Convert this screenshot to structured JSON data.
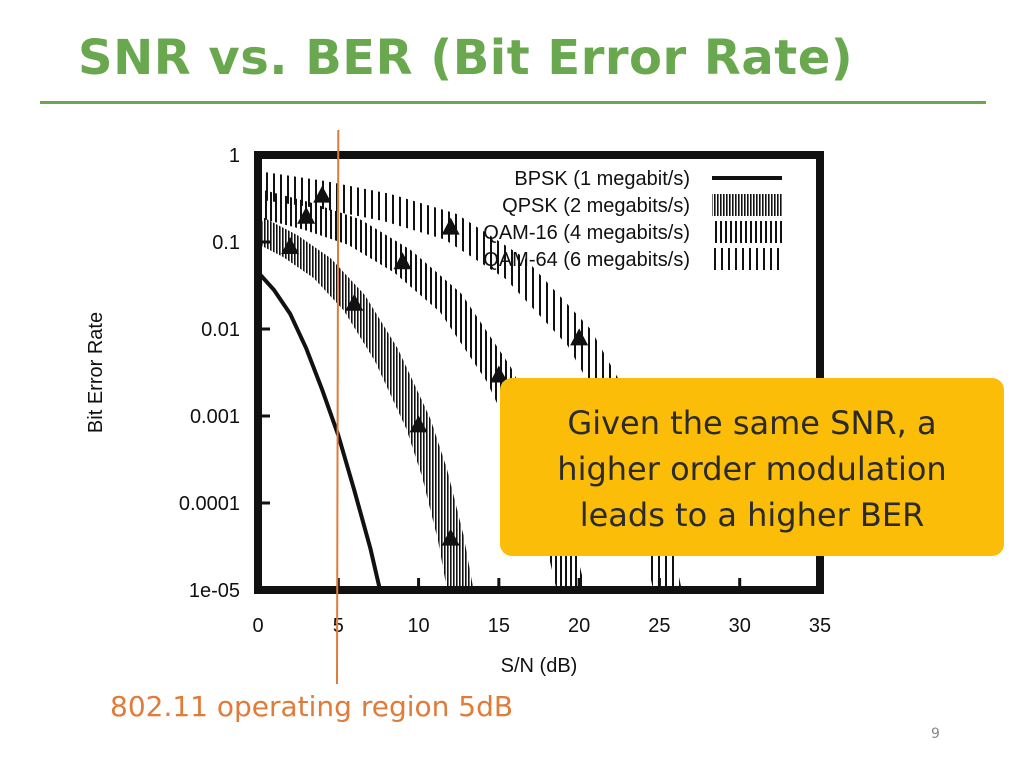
{
  "slide": {
    "title": "SNR vs. BER (Bit Error Rate)",
    "callout_lines": [
      "Given the same SNR, a",
      "higher order modulation",
      "leads to a higher BER"
    ],
    "annotation": "802.11 operating region 5dB",
    "page_number": "9"
  },
  "colors": {
    "title_green": "#6aa84f",
    "callout_bg": "#fbbd08",
    "annotation_orange": "#e07b39",
    "marker_line": "#e07b39"
  },
  "chart_data": {
    "type": "line",
    "xlabel": "S/N (dB)",
    "ylabel": "Bit Error Rate",
    "x_ticks": [
      "0",
      "5",
      "10",
      "15",
      "20",
      "25",
      "30",
      "35"
    ],
    "y_ticks": [
      "1",
      "0.1",
      "0.01",
      "0.001",
      "0.0001",
      "1e-05"
    ],
    "xlim": [
      0,
      35
    ],
    "ylim": [
      1e-05,
      1
    ],
    "y_scale": "log",
    "legend_position": "top-right",
    "marker_line_x": 5,
    "series": [
      {
        "name": "BPSK (1 megabit/s)",
        "style": "solid",
        "x": [
          0,
          1,
          2,
          3,
          4,
          5,
          6,
          7,
          7.6
        ],
        "y": [
          0.045,
          0.028,
          0.015,
          0.006,
          0.002,
          0.0006,
          0.00014,
          3e-05,
          1e-05
        ]
      },
      {
        "name": "QPSK (2 megabits/s)",
        "style": "dense-hatch",
        "x": [
          0,
          2,
          4,
          6,
          8,
          10,
          11,
          12,
          12.6
        ],
        "y": [
          0.14,
          0.09,
          0.05,
          0.02,
          0.005,
          0.0008,
          0.00022,
          4e-05,
          1e-05
        ]
      },
      {
        "name": "QAM-16 (4 megabits/s)",
        "style": "hatch",
        "x": [
          0,
          3,
          6,
          9,
          12,
          15,
          17,
          18.5,
          19.5
        ],
        "y": [
          0.28,
          0.2,
          0.13,
          0.06,
          0.02,
          0.003,
          0.0005,
          6e-05,
          1e-05
        ]
      },
      {
        "name": "QAM-64 (6 megabits/s)",
        "style": "sparse-hatch",
        "x": [
          0,
          4,
          8,
          12,
          16,
          20,
          22.5,
          24,
          25.5
        ],
        "y": [
          0.45,
          0.35,
          0.25,
          0.15,
          0.05,
          0.008,
          0.0012,
          0.0002,
          1e-05
        ]
      }
    ]
  }
}
